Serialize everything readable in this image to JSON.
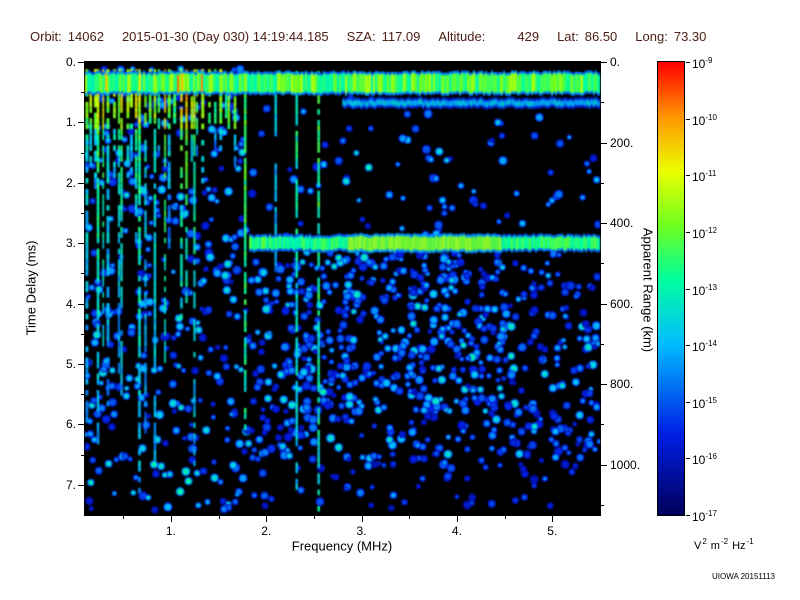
{
  "header": {
    "orbit_label": "Orbit:",
    "orbit_value": "14062",
    "datetime": "2015-01-30 (Day 030) 14:19:44.185",
    "sza_label": "SZA:",
    "sza_value": "117.09",
    "altitude_label": "Altitude:",
    "altitude_value": "429",
    "lat_label": "Lat:",
    "lat_value": "86.50",
    "long_label": "Long:",
    "long_value": "73.30"
  },
  "chart_data": {
    "type": "heatmap",
    "title": "",
    "xlabel": "Frequency (MHz)",
    "ylabel_left": "Time Delay (ms)",
    "ylabel_right": "Apparent Range (km)",
    "x_range_mhz": [
      0.1,
      5.5
    ],
    "x_ticks": [
      {
        "v": 1,
        "label": "1."
      },
      {
        "v": 2,
        "label": "2."
      },
      {
        "v": 3,
        "label": "3."
      },
      {
        "v": 4,
        "label": "4."
      },
      {
        "v": 5,
        "label": "5."
      }
    ],
    "y_range_ms": [
      0,
      7.5
    ],
    "y_ticks": [
      {
        "v": 0,
        "label": "0."
      },
      {
        "v": 1,
        "label": "1."
      },
      {
        "v": 2,
        "label": "2."
      },
      {
        "v": 3,
        "label": "3."
      },
      {
        "v": 4,
        "label": "4."
      },
      {
        "v": 5,
        "label": "5."
      },
      {
        "v": 6,
        "label": "6."
      },
      {
        "v": 7,
        "label": "7."
      }
    ],
    "y2_range_km": [
      0,
      1125
    ],
    "y2_ticks": [
      {
        "v": 0,
        "label": "0."
      },
      {
        "v": 200,
        "label": "200."
      },
      {
        "v": 400,
        "label": "400."
      },
      {
        "v": 600,
        "label": "600."
      },
      {
        "v": 800,
        "label": "800."
      },
      {
        "v": 1000,
        "label": "1000."
      }
    ],
    "colorbar": {
      "scale": "log",
      "base": "10",
      "tick_exponents": [
        -9,
        -10,
        -11,
        -12,
        -13,
        -14,
        -15,
        -16,
        -17
      ],
      "units": {
        "u1": "V",
        "e1": "2",
        "u2": "m",
        "e2": "-2",
        "u3": "Hz",
        "e3": "-1"
      }
    },
    "credit": "UIOWA 20151113",
    "seed": 20151113,
    "colormap_stops": [
      [
        0,
        0,
        0,
        90
      ],
      [
        0.18,
        0,
        30,
        230
      ],
      [
        0.38,
        0,
        190,
        255
      ],
      [
        0.52,
        0,
        255,
        160
      ],
      [
        0.64,
        110,
        255,
        30
      ],
      [
        0.76,
        235,
        255,
        0
      ],
      [
        0.88,
        255,
        150,
        0
      ],
      [
        1,
        255,
        0,
        0
      ]
    ],
    "features": {
      "background": "#000000",
      "speckle_regions": [
        {
          "f": [
            0.1,
            1.8
          ],
          "ms": [
            0.1,
            4.2
          ],
          "density": 0.32,
          "imin": 0.15,
          "imax": 0.45
        },
        {
          "f": [
            0.1,
            1.8
          ],
          "ms": [
            4.2,
            7.45
          ],
          "density": 0.3,
          "imin": 0.15,
          "imax": 0.5
        },
        {
          "f": [
            1.8,
            5.5
          ],
          "ms": [
            0.6,
            2.9
          ],
          "density": 0.09,
          "imin": 0.14,
          "imax": 0.4
        },
        {
          "f": [
            2.4,
            4.2
          ],
          "ms": [
            1.2,
            2.9
          ],
          "density": 0.05,
          "imin": 0.3,
          "imax": 0.5
        },
        {
          "f": [
            1.8,
            5.5
          ],
          "ms": [
            3.15,
            6.6
          ],
          "density": 0.5,
          "imin": 0.15,
          "imax": 0.45
        },
        {
          "f": [
            2.2,
            4.6
          ],
          "ms": [
            3.2,
            5.8
          ],
          "density": 0.25,
          "imin": 0.2,
          "imax": 0.5
        },
        {
          "f": [
            1.8,
            5.5
          ],
          "ms": [
            6.6,
            7.45
          ],
          "density": 0.18,
          "imin": 0.12,
          "imax": 0.35
        }
      ],
      "stripes": {
        "f_start": 0.12,
        "f_end": 1.74,
        "gap_min": 0.025,
        "gap_var": 0.05,
        "shallow_zone": [
          1.3,
          1.72
        ],
        "imin": 0.45,
        "imax": 0.72
      },
      "tall_lines": [
        {
          "f": 1.78,
          "depth": 6.0,
          "i": 0.6
        },
        {
          "f": 2.1,
          "depth": 3.4,
          "i": 0.42
        },
        {
          "f": 2.32,
          "depth": 7.0,
          "i": 0.52
        },
        {
          "f": 2.55,
          "depth": 7.35,
          "i": 0.58
        }
      ],
      "bands": [
        {
          "ms": 0.35,
          "h": 0.3,
          "f": [
            0.1,
            5.5
          ],
          "i": 0.6,
          "ivar": 0.11,
          "hot": [
            {
              "f": [
                0.9,
                1.4
              ],
              "p": 0.12,
              "imin": 0.82,
              "imax": 1.0
            },
            {
              "f": [
                0.25,
                0.9
              ],
              "p": 0.1,
              "imin": 0.7,
              "imax": 0.85
            }
          ]
        },
        {
          "ms": 0.68,
          "h": 0.09,
          "f": [
            2.8,
            5.5
          ],
          "i": 0.4,
          "ivar": 0.06
        },
        {
          "ms": 3.0,
          "h": 0.2,
          "f": [
            1.82,
            5.5
          ],
          "i": 0.55,
          "ivar": 0.07
        },
        {
          "ms": 3.0,
          "h": 0.22,
          "f": [
            2.85,
            4.45
          ],
          "i": 0.66,
          "ivar": 0.05
        }
      ]
    }
  }
}
